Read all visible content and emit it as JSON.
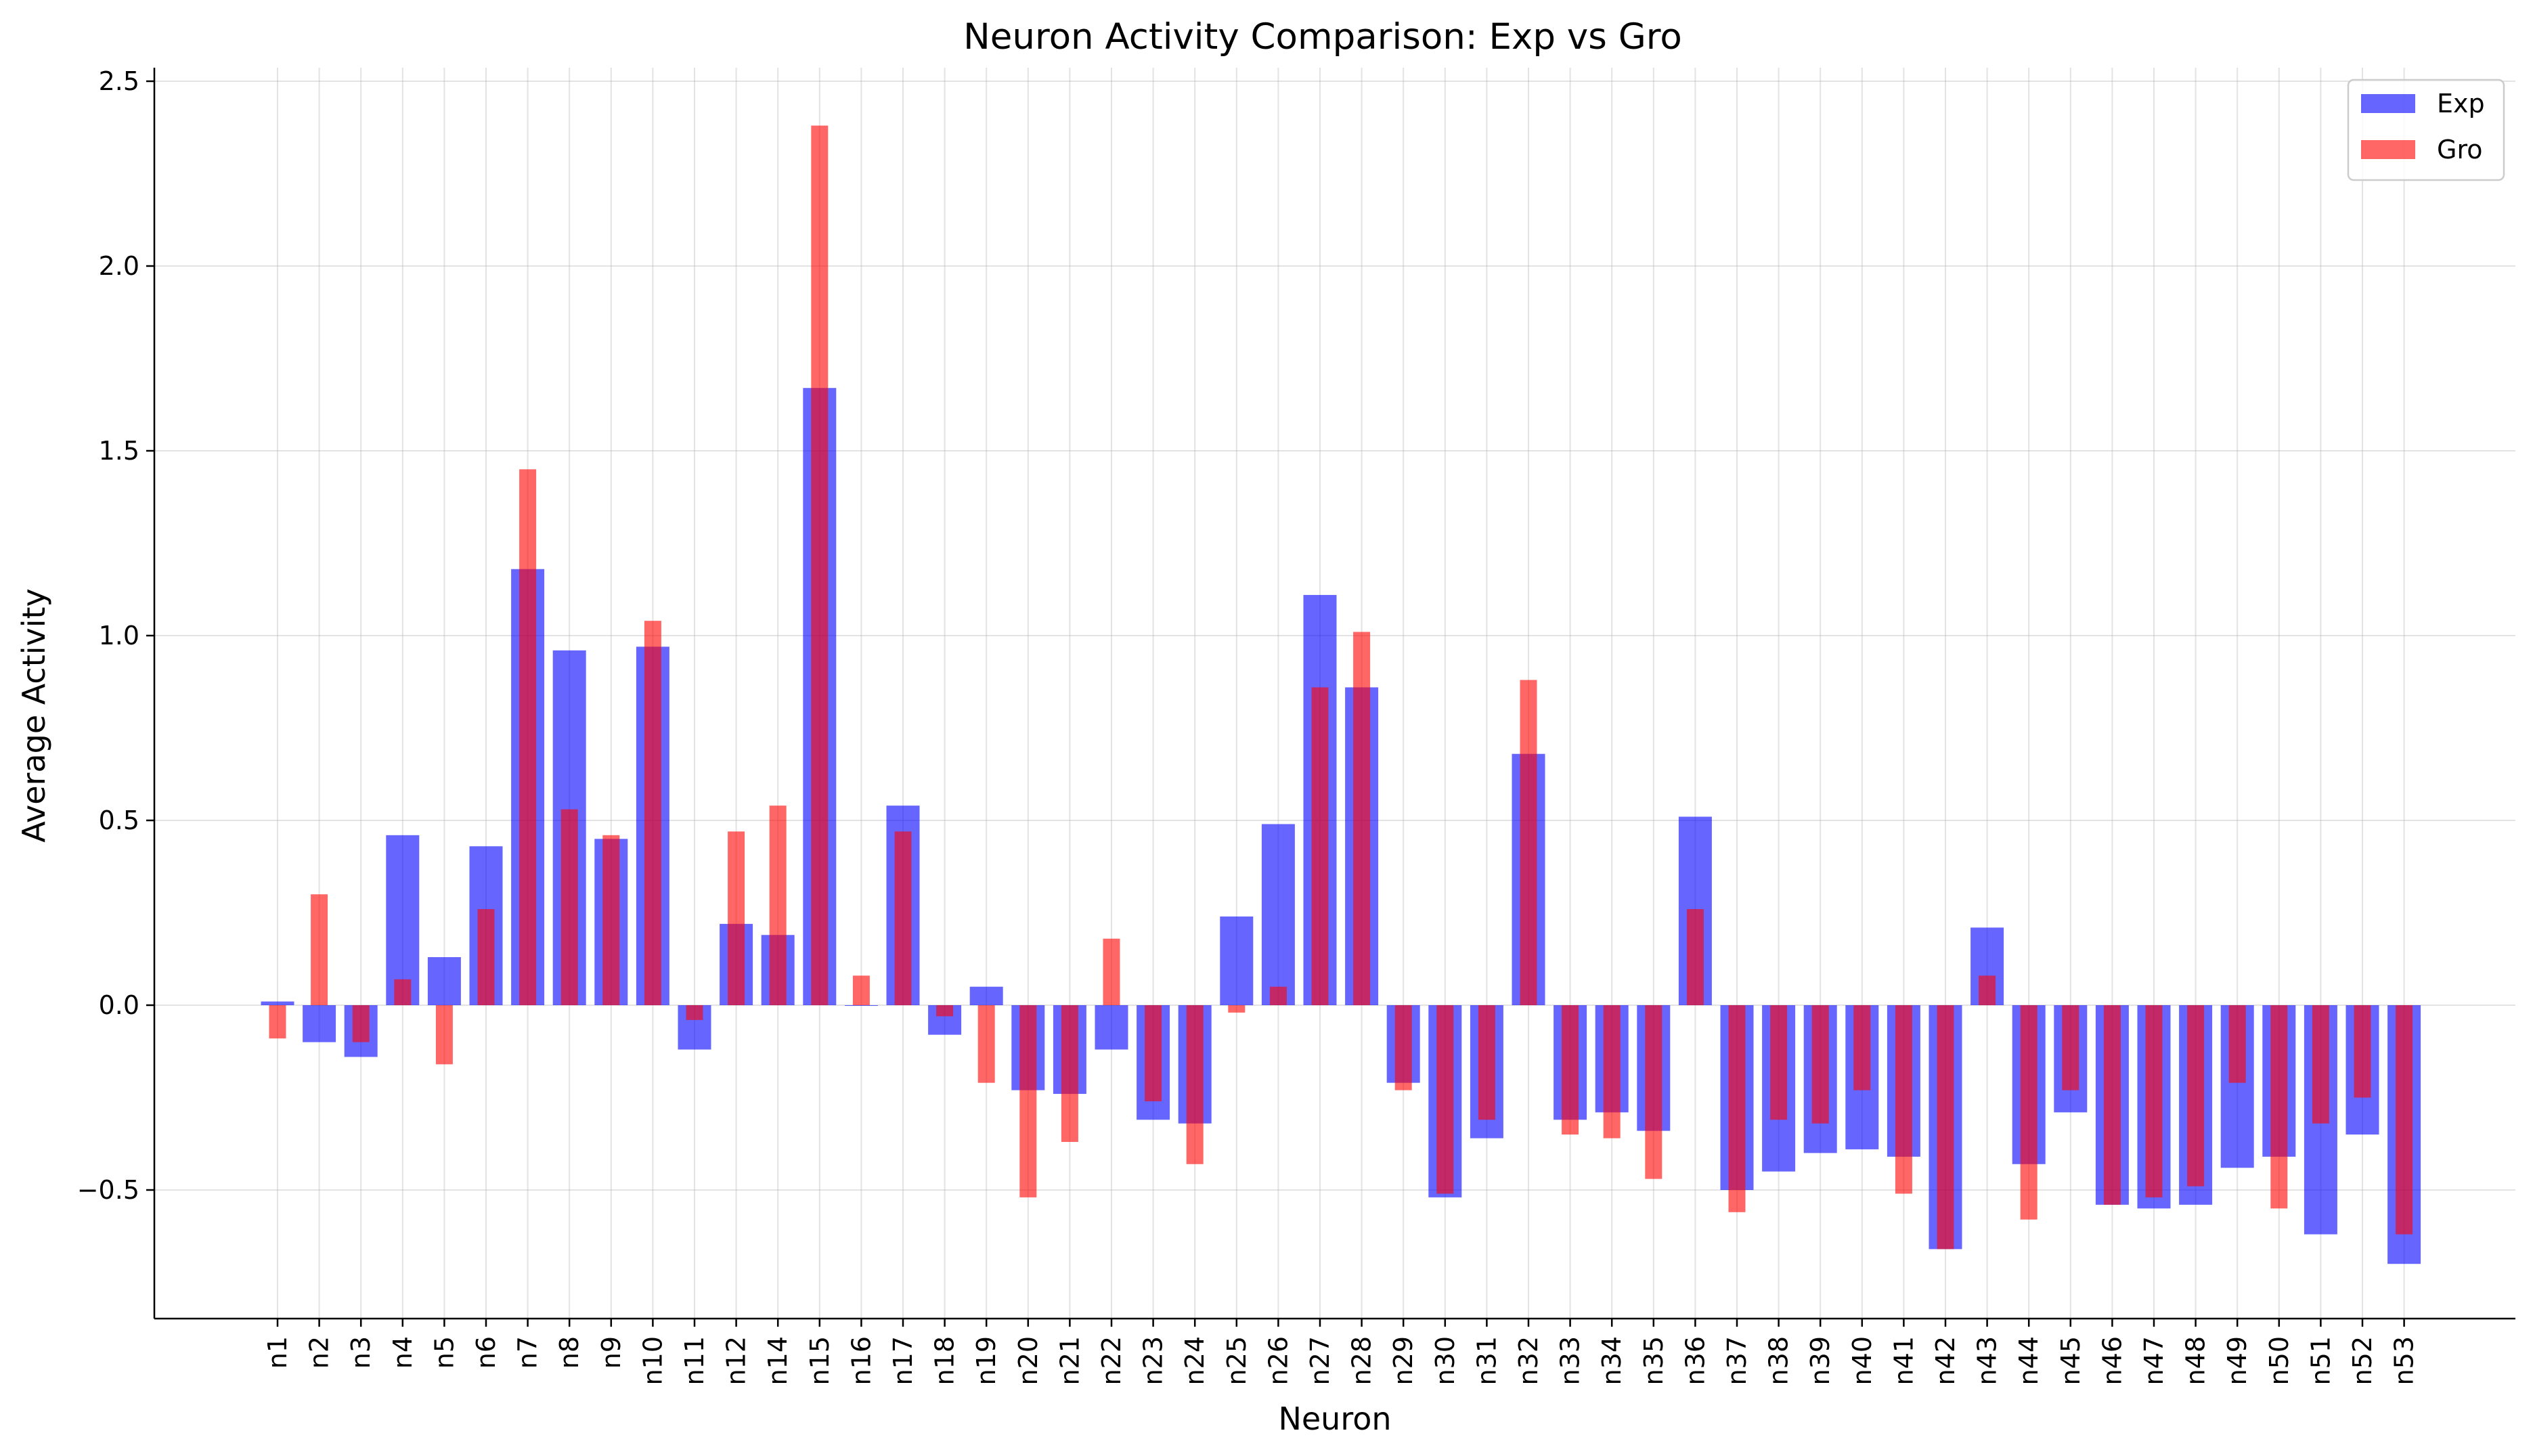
{
  "chart_data": {
    "type": "bar",
    "title": "Neuron Activity Comparison: Exp vs Gro",
    "xlabel": "Neuron",
    "ylabel": "Average Activity",
    "ylim": [
      -0.85,
      2.55
    ],
    "yticks": [
      -0.5,
      0.0,
      0.5,
      1.0,
      1.5,
      2.0,
      2.5
    ],
    "ytick_labels": [
      "−0.5",
      "0.0",
      "0.5",
      "1.0",
      "1.5",
      "2.0",
      "2.5"
    ],
    "grid": true,
    "legend_position": "top-right",
    "categories": [
      "n1",
      "n2",
      "n3",
      "n4",
      "n5",
      "n6",
      "n7",
      "n8",
      "n9",
      "n10",
      "n11",
      "n12",
      "n14",
      "n15",
      "n16",
      "n17",
      "n18",
      "n19",
      "n20",
      "n21",
      "n22",
      "n23",
      "n24",
      "n25",
      "n26",
      "n27",
      "n28",
      "n29",
      "n30",
      "n31",
      "n32",
      "n33",
      "n34",
      "n35",
      "n36",
      "n37",
      "n38",
      "n39",
      "n40",
      "n41",
      "n42",
      "n43",
      "n44",
      "n45",
      "n46",
      "n47",
      "n48",
      "n49",
      "n50",
      "n51",
      "n52",
      "n53"
    ],
    "series": [
      {
        "name": "Exp",
        "color": "#0000ff",
        "opacity": 0.6,
        "values": [
          0.01,
          -0.1,
          -0.14,
          0.46,
          0.13,
          0.43,
          1.18,
          0.96,
          0.45,
          0.97,
          -0.12,
          0.22,
          0.19,
          1.67,
          0.0,
          0.54,
          -0.08,
          0.05,
          -0.23,
          -0.24,
          -0.12,
          -0.31,
          -0.32,
          0.24,
          0.49,
          1.11,
          0.86,
          -0.21,
          -0.52,
          -0.36,
          0.68,
          -0.31,
          -0.29,
          -0.34,
          0.51,
          -0.5,
          -0.45,
          -0.4,
          -0.39,
          -0.41,
          -0.66,
          0.21,
          -0.43,
          -0.29,
          -0.54,
          -0.55,
          -0.54,
          -0.44,
          -0.41,
          -0.62,
          -0.35,
          -0.7
        ]
      },
      {
        "name": "Gro",
        "color": "#ff0000",
        "opacity": 0.6,
        "values": [
          -0.09,
          0.3,
          -0.1,
          0.07,
          -0.16,
          0.26,
          1.45,
          0.53,
          0.46,
          1.04,
          -0.04,
          0.47,
          0.54,
          2.38,
          0.08,
          0.47,
          -0.03,
          -0.21,
          -0.52,
          -0.37,
          0.18,
          -0.26,
          -0.43,
          -0.02,
          0.05,
          0.86,
          1.01,
          -0.23,
          -0.51,
          -0.31,
          0.88,
          -0.35,
          -0.36,
          -0.47,
          0.26,
          -0.56,
          -0.31,
          -0.32,
          -0.23,
          -0.51,
          -0.66,
          0.08,
          -0.58,
          -0.23,
          -0.54,
          -0.52,
          -0.49,
          -0.21,
          -0.55,
          -0.32,
          -0.25,
          -0.62
        ]
      }
    ]
  }
}
